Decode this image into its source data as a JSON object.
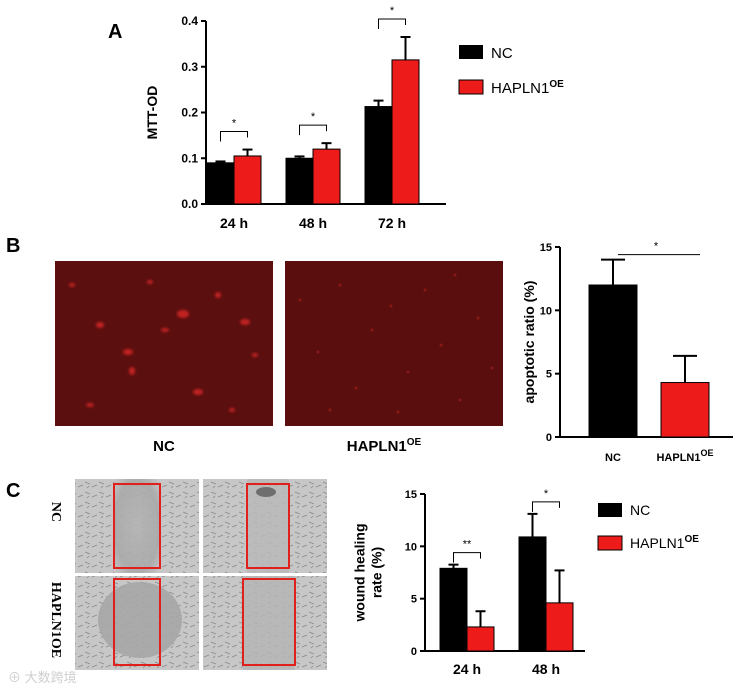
{
  "panel_labels": {
    "a": "A",
    "b": "B",
    "c": "C"
  },
  "colors": {
    "nc": "#000000",
    "oe": "#ee1b1b",
    "fluor_bg": "#5c0f0f",
    "frame": "#e0201c"
  },
  "legend": {
    "nc": "NC",
    "oe_base": "HAPLN1",
    "oe_sup": "OE"
  },
  "watermark": "⊕ 大数跨境",
  "panel_b_images": {
    "nc_label": "NC",
    "oe_label_base": "HAPLN1",
    "oe_label_sup": "OE"
  },
  "panel_c_images": {
    "row1_label": "NC",
    "row2_label": "HAPLN1OE"
  },
  "chart_data": [
    {
      "type": "bar",
      "panel": "A",
      "ylabel": "MTT-OD",
      "ylim": [
        0,
        0.4
      ],
      "yticks": [
        "0.0",
        "0.1",
        "0.2",
        "0.3",
        "0.4"
      ],
      "categories": [
        "24 h",
        "48 h",
        "72 h"
      ],
      "series": [
        {
          "name": "NC",
          "values": [
            0.09,
            0.1,
            0.213
          ],
          "errors": [
            0.003,
            0.004,
            0.013
          ]
        },
        {
          "name": "HAPLN1OE",
          "values": [
            0.105,
            0.12,
            0.315
          ],
          "errors": [
            0.014,
            0.013,
            0.05
          ]
        }
      ],
      "significance": [
        "*",
        "*",
        "*"
      ],
      "legend_position": "right"
    },
    {
      "type": "bar",
      "panel": "B",
      "ylabel": "apoptotic ratio (%)",
      "ylim": [
        0,
        15
      ],
      "yticks": [
        "0",
        "5",
        "10",
        "15"
      ],
      "categories": [
        "NC",
        "HAPLN1OE"
      ],
      "values": [
        12.0,
        4.3
      ],
      "errors": [
        2.0,
        2.1
      ],
      "significance": [
        "*"
      ]
    },
    {
      "type": "bar",
      "panel": "C",
      "ylabel": "wound healing rate (%)",
      "ylabel_lines": [
        "wound healing",
        "rate (%)"
      ],
      "ylim": [
        0,
        15
      ],
      "yticks": [
        "0",
        "5",
        "10",
        "15"
      ],
      "categories": [
        "24 h",
        "48 h"
      ],
      "series": [
        {
          "name": "NC",
          "values": [
            7.9,
            10.9
          ],
          "errors": [
            0.35,
            2.2
          ]
        },
        {
          "name": "HAPLN1OE",
          "values": [
            2.3,
            4.6
          ],
          "errors": [
            1.5,
            3.1
          ]
        }
      ],
      "significance": [
        "**",
        "*"
      ],
      "legend_position": "right"
    }
  ]
}
